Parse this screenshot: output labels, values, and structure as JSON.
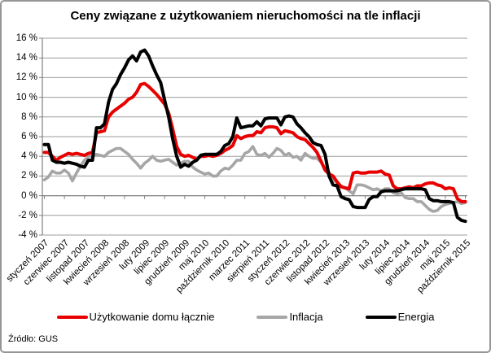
{
  "chart_data": {
    "type": "line",
    "title": "Ceny związane z użytkowaniem nieruchomości na tle inflacji",
    "source": "Źródło: GUS",
    "grid": true,
    "legend_position": "bottom",
    "y_axis": {
      "min": -4,
      "max": 16,
      "step": 2,
      "unit": "%",
      "tick_labels": [
        "16 %",
        "14 %",
        "12 %",
        "10 %",
        "8 %",
        "6 %",
        "4 %",
        "2 %",
        "0 %",
        "-2 %",
        "-4 %"
      ]
    },
    "x_axis": {
      "tick_interval": 5,
      "tick_labels": [
        "styczeń 2007",
        "czerwiec 2007",
        "listopad 2007",
        "kwiecień 2008",
        "wrzesień 2008",
        "luty 2009",
        "lipiec 2009",
        "grudzień 2009",
        "maj 2010",
        "październik 2010",
        "marzec 2011",
        "sierpień 2011",
        "styczeń 2012",
        "czerwiec 2012",
        "listopad 2012",
        "kwiecień 2013",
        "wrzesień 2013",
        "luty 2014",
        "lipiec 2014",
        "grudzień 2014",
        "maj 2015",
        "październik 2015"
      ],
      "first_month": "styczeń 2007",
      "last_month": "październik 2015"
    },
    "series": [
      {
        "name": "Użytkowanie domu łącznie",
        "color": "#e80000",
        "values": [
          4.4,
          4.4,
          4.0,
          3.6,
          3.9,
          4.1,
          4.3,
          4.2,
          4.3,
          4.2,
          4.1,
          4.3,
          4.4,
          6.4,
          6.5,
          6.6,
          8.0,
          8.5,
          8.8,
          9.1,
          9.4,
          9.8,
          10.0,
          10.5,
          11.3,
          11.4,
          11.1,
          10.7,
          10.3,
          9.8,
          9.3,
          8.4,
          6.8,
          5.0,
          4.2,
          4.0,
          4.1,
          3.9,
          3.7,
          4.0,
          4.0,
          4.1,
          4.0,
          4.1,
          4.3,
          4.6,
          4.8,
          5.1,
          6.1,
          5.8,
          6.0,
          6.1,
          6.1,
          6.5,
          6.4,
          6.9,
          7.0,
          7.0,
          6.9,
          6.3,
          6.6,
          6.5,
          6.4,
          6.0,
          5.8,
          5.7,
          5.3,
          4.9,
          4.4,
          3.5,
          2.6,
          2.2,
          2.0,
          1.4,
          0.9,
          0.8,
          0.7,
          2.3,
          2.4,
          2.3,
          2.3,
          2.4,
          2.4,
          2.4,
          2.5,
          2.2,
          2.1,
          1.0,
          0.7,
          0.7,
          0.8,
          0.9,
          0.8,
          1.0,
          1.0,
          1.2,
          1.3,
          1.3,
          1.1,
          1.0,
          0.7,
          0.8,
          0.7,
          -0.3,
          -0.6,
          -0.6
        ]
      },
      {
        "name": "Inflacja",
        "color": "#a6a6a6",
        "values": [
          1.6,
          1.9,
          2.5,
          2.3,
          2.3,
          2.6,
          2.3,
          1.5,
          2.3,
          3.0,
          3.6,
          4.0,
          4.0,
          4.2,
          4.1,
          4.0,
          4.4,
          4.6,
          4.8,
          4.8,
          4.5,
          4.2,
          3.7,
          3.3,
          2.8,
          3.3,
          3.6,
          4.0,
          3.6,
          3.5,
          3.6,
          3.7,
          3.4,
          3.1,
          3.3,
          3.5,
          3.5,
          2.9,
          2.6,
          2.4,
          2.2,
          2.3,
          2.0,
          2.0,
          2.5,
          2.8,
          2.7,
          3.1,
          3.6,
          3.6,
          4.3,
          4.5,
          5.0,
          4.2,
          4.1,
          4.3,
          3.9,
          4.3,
          4.8,
          4.6,
          4.1,
          4.3,
          3.9,
          4.0,
          3.6,
          4.3,
          4.0,
          3.8,
          3.8,
          3.4,
          2.8,
          2.4,
          1.7,
          1.3,
          1.0,
          0.8,
          0.5,
          0.2,
          1.1,
          1.1,
          1.0,
          0.8,
          0.6,
          0.7,
          0.5,
          0.7,
          0.7,
          0.3,
          0.2,
          0.3,
          -0.2,
          -0.3,
          -0.3,
          -0.6,
          -0.6,
          -1.0,
          -1.4,
          -1.6,
          -1.5,
          -1.1,
          -0.9,
          -0.8,
          -0.7,
          -0.6,
          -0.8,
          -0.7
        ]
      },
      {
        "name": "Energia",
        "color": "#000000",
        "values": [
          5.2,
          5.2,
          3.6,
          3.4,
          3.4,
          3.3,
          3.4,
          3.3,
          3.2,
          3.0,
          2.9,
          3.6,
          3.6,
          6.9,
          6.9,
          7.3,
          9.5,
          10.8,
          11.4,
          12.3,
          13.0,
          13.8,
          14.2,
          13.7,
          14.6,
          14.8,
          14.2,
          13.2,
          12.3,
          11.5,
          9.7,
          8.0,
          5.8,
          4.0,
          2.9,
          3.2,
          3.0,
          3.4,
          3.6,
          4.1,
          4.2,
          4.2,
          4.2,
          4.2,
          4.5,
          5.1,
          5.3,
          6.0,
          7.9,
          6.9,
          7.0,
          7.1,
          7.1,
          7.5,
          7.1,
          7.8,
          7.9,
          7.9,
          7.9,
          7.2,
          8.0,
          8.1,
          8.0,
          7.3,
          6.9,
          6.4,
          6.0,
          5.4,
          5.2,
          5.1,
          4.2,
          2.0,
          1.1,
          1.0,
          -0.1,
          -0.3,
          -0.4,
          -1.1,
          -1.2,
          -1.2,
          -1.2,
          -0.4,
          -0.1,
          -0.1,
          0.4,
          0.5,
          0.5,
          0.5,
          0.5,
          0.6,
          0.7,
          0.7,
          0.7,
          0.7,
          0.7,
          0.6,
          -0.3,
          -0.5,
          -0.5,
          -0.6,
          -0.6,
          -0.6,
          -0.7,
          -2.2,
          -2.5,
          -2.6
        ]
      }
    ]
  }
}
